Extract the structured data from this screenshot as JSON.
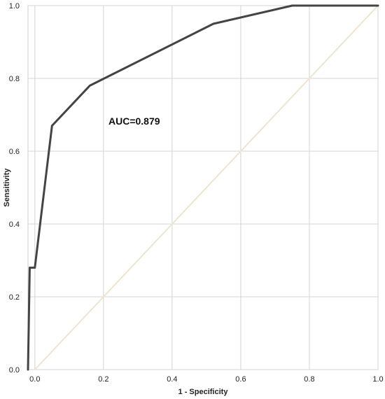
{
  "chart_data": {
    "type": "line",
    "xlabel": "1 - Specificity",
    "ylabel": "Sensitivity",
    "xlim": [
      -0.02,
      1.0
    ],
    "ylim": [
      0.0,
      1.0
    ],
    "x_ticks": [
      0.0,
      0.2,
      0.4,
      0.6,
      0.8,
      1.0
    ],
    "x_tick_labels": [
      "0.0",
      "0.2",
      "0.4",
      "0.6",
      "0.8",
      "1.0"
    ],
    "y_ticks": [
      0.0,
      0.2,
      0.4,
      0.6,
      0.8,
      1.0
    ],
    "y_tick_labels": [
      "0.0",
      "0.2",
      "0.4",
      "0.6",
      "0.8",
      "1.0"
    ],
    "grid": true,
    "annotation": "AUC=0.879",
    "series": [
      {
        "color": "#444444",
        "x": [
          -0.02,
          -0.015,
          -0.01,
          0.0,
          0.05,
          0.16,
          0.52,
          0.75,
          1.0
        ],
        "y": [
          0.0,
          0.28,
          0.28,
          0.28,
          0.67,
          0.78,
          0.95,
          1.0,
          1.0
        ]
      },
      {
        "color": "#efe4cf",
        "x": [
          0.0,
          1.0
        ],
        "y": [
          0.0,
          1.0
        ]
      }
    ]
  }
}
